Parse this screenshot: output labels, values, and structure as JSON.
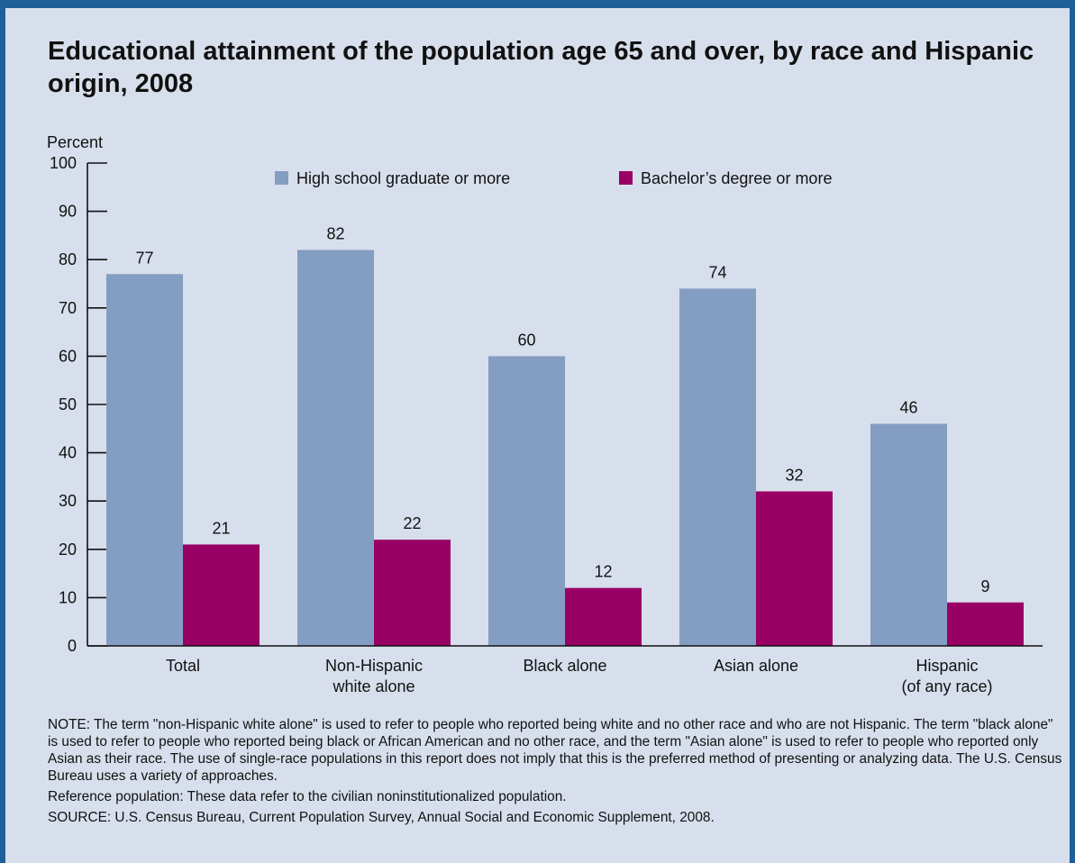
{
  "chart_data": {
    "type": "bar",
    "title": "Educational attainment of the population age 65 and over, by race and Hispanic origin, 2008",
    "ylabel": "Percent",
    "xlabel": "",
    "ylim": [
      0,
      100
    ],
    "yticks": [
      0,
      10,
      20,
      30,
      40,
      50,
      60,
      70,
      80,
      90,
      100
    ],
    "grid": false,
    "legend_position": "top",
    "categories": [
      [
        "Total"
      ],
      [
        "Non-Hispanic",
        "white alone"
      ],
      [
        "Black alone"
      ],
      [
        "Asian alone"
      ],
      [
        "Hispanic",
        "(of any race)"
      ]
    ],
    "series": [
      {
        "name": "High school graduate or more",
        "color": "#849dc3",
        "values": [
          77,
          82,
          60,
          74,
          46
        ]
      },
      {
        "name": "Bachelor’s degree or more",
        "color": "#990066",
        "values": [
          21,
          22,
          12,
          32,
          9
        ]
      }
    ]
  },
  "notes": {
    "note": "NOTE: The term \"non-Hispanic white alone\" is used to refer to people who reported being white and no other race and who are not Hispanic.  The term \"black alone\" is used to refer to people who reported being black or African American and no other race, and the term \"Asian alone\" is used to refer to people who reported only Asian as their race. The use of single-race populations in this report does not imply that this is the preferred method of presenting or analyzing data. The U.S. Census Bureau uses a variety of approaches.",
    "reference": "Reference population: These data refer to the civilian noninstitutionalized population.",
    "source": "SOURCE: U.S. Census Bureau, Current Population Survey, Annual Social and Economic Supplement, 2008."
  }
}
